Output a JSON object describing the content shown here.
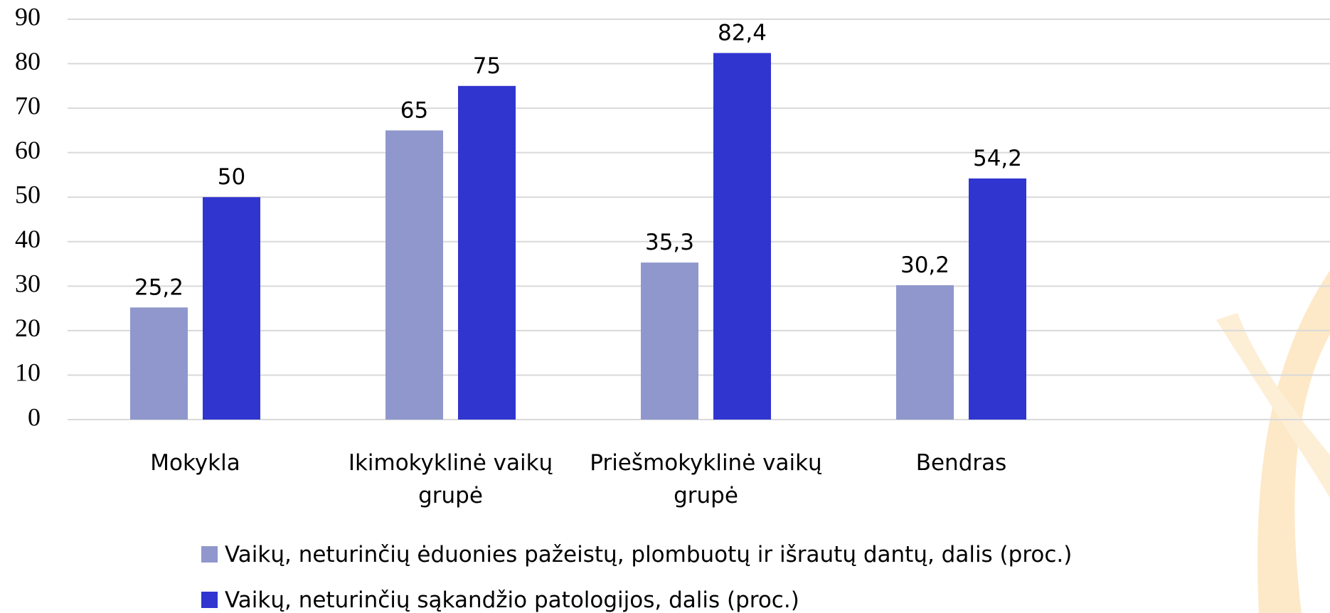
{
  "chart_data": {
    "type": "bar",
    "categories": [
      "Mokykla",
      "Ikimokyklinė vaikų grupė",
      "Priešmokyklinė vaikų grupė",
      "Bendras"
    ],
    "series": [
      {
        "name": "Vaikų, neturinčių ėduonies pažeistų, plombuotų ir išrautų dantų, dalis (proc.)",
        "color": "#8f97cc",
        "values": [
          25.2,
          65,
          35.3,
          30.2
        ],
        "value_labels": [
          "25,2",
          "65",
          "35,3",
          "30,2"
        ]
      },
      {
        "name": "Vaikų, neturinčių sąkandžio patologijos, dalis (proc.)",
        "color": "#3035d0",
        "values": [
          50,
          75,
          82.4,
          54.2
        ],
        "value_labels": [
          "50",
          "75",
          "82,4",
          "54,2"
        ]
      }
    ],
    "ylim": [
      0,
      90
    ],
    "yticks": [
      0,
      10,
      20,
      30,
      40,
      50,
      60,
      70,
      80,
      90
    ],
    "grid": true,
    "legend": "bottom"
  }
}
